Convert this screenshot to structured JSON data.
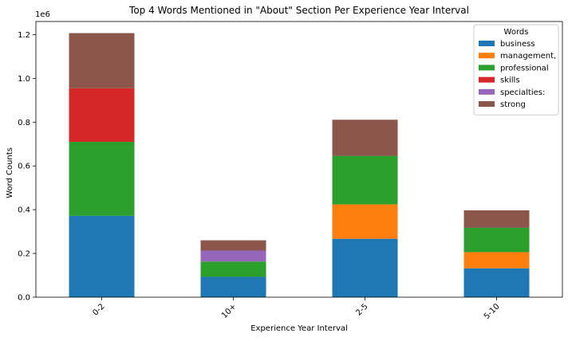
{
  "chart_data": {
    "type": "bar",
    "stacked": true,
    "title": "Top 4 Words Mentioned in \"About\" Section Per Experience Year Interval",
    "xlabel": "Experience Year Interval",
    "ylabel": "Word Counts",
    "y_offset_label": "1e6",
    "ylim": [
      0,
      1.26
    ],
    "yticks": [
      "0.0",
      "0.2",
      "0.4",
      "0.6",
      "0.8",
      "1.0",
      "1.2"
    ],
    "categories": [
      "0-2",
      "10+",
      "2-5",
      "5-10"
    ],
    "series": [
      {
        "name": "business",
        "color": "#1f77b4",
        "values": [
          0.372,
          0.093,
          0.267,
          0.132
        ]
      },
      {
        "name": "management,",
        "color": "#ff7f0e",
        "values": [
          0,
          0,
          0.157,
          0.074
        ]
      },
      {
        "name": "professional",
        "color": "#2ca02c",
        "values": [
          0.338,
          0.07,
          0.222,
          0.111
        ]
      },
      {
        "name": "skills",
        "color": "#d62728",
        "values": [
          0.245,
          0,
          0,
          0
        ]
      },
      {
        "name": "specialties:",
        "color": "#9467bd",
        "values": [
          0,
          0.05,
          0,
          0
        ]
      },
      {
        "name": "strong",
        "color": "#8c564b",
        "values": [
          0.252,
          0.047,
          0.165,
          0.08
        ]
      }
    ],
    "legend": {
      "title": "Words",
      "placement": "top-right"
    },
    "grid": false
  }
}
